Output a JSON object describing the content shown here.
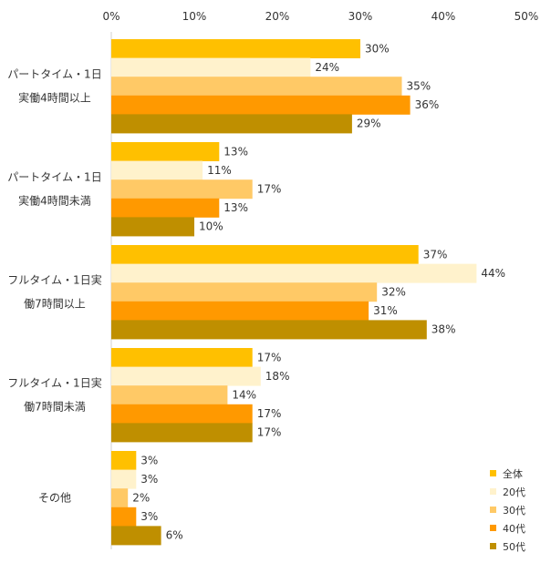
{
  "chart_data": {
    "type": "bar",
    "orientation": "horizontal",
    "title": "",
    "xlabel": "",
    "ylabel": "",
    "xlim": [
      0,
      50
    ],
    "x_ticks": [
      "0%",
      "10%",
      "20%",
      "30%",
      "40%",
      "50%"
    ],
    "x_tick_values": [
      0,
      10,
      20,
      30,
      40,
      50
    ],
    "grid": false,
    "legend_position": "bottom-right",
    "categories": [
      [
        "パートタイム・1日",
        "実働4時間以上"
      ],
      [
        "パートタイム・1日",
        "実働4時間未満"
      ],
      [
        "フルタイム・1日実",
        "働7時間以上"
      ],
      [
        "フルタイム・1日実",
        "働7時間未満"
      ],
      [
        "その他"
      ]
    ],
    "series": [
      {
        "name": "全体",
        "color": "#FFC000",
        "values": [
          30,
          13,
          37,
          17,
          3
        ],
        "labels": [
          "30%",
          "13%",
          "37%",
          "17%",
          "3%"
        ]
      },
      {
        "name": "20代",
        "color": "#FFF2CC",
        "values": [
          24,
          11,
          44,
          18,
          3
        ],
        "labels": [
          "24%",
          "11%",
          "44%",
          "18%",
          "3%"
        ]
      },
      {
        "name": "30代",
        "color": "#FFC966",
        "values": [
          35,
          17,
          32,
          14,
          2
        ],
        "labels": [
          "35%",
          "17%",
          "32%",
          "14%",
          "2%"
        ]
      },
      {
        "name": "40代",
        "color": "#FF9900",
        "values": [
          36,
          13,
          31,
          17,
          3
        ],
        "labels": [
          "36%",
          "13%",
          "31%",
          "17%",
          "3%"
        ]
      },
      {
        "name": "50代",
        "color": "#BF8F00",
        "values": [
          29,
          10,
          38,
          17,
          6
        ],
        "labels": [
          "29%",
          "10%",
          "38%",
          "17%",
          "6%"
        ]
      }
    ]
  }
}
